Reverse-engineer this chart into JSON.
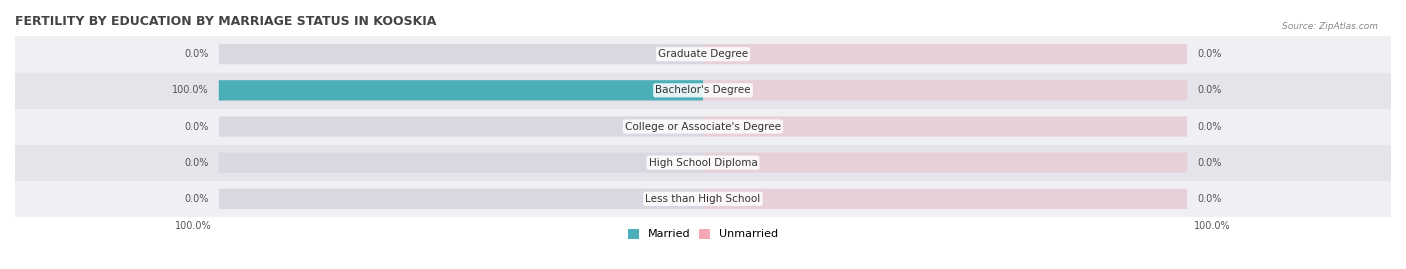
{
  "title": "FERTILITY BY EDUCATION BY MARRIAGE STATUS IN KOOSKIA",
  "source": "Source: ZipAtlas.com",
  "categories": [
    "Less than High School",
    "High School Diploma",
    "College or Associate's Degree",
    "Bachelor's Degree",
    "Graduate Degree"
  ],
  "married_values": [
    0.0,
    0.0,
    0.0,
    100.0,
    0.0
  ],
  "unmarried_values": [
    0.0,
    0.0,
    0.0,
    0.0,
    0.0
  ],
  "married_color": "#4AAFB8",
  "unmarried_color": "#F4A7B5",
  "bar_bg_color": "#E8E8EC",
  "row_bg_colors": [
    "#F0F0F4",
    "#E4E4EA"
  ],
  "max_value": 100.0,
  "title_fontsize": 9,
  "label_fontsize": 7.5,
  "tick_fontsize": 7,
  "legend_fontsize": 8,
  "background_color": "#FFFFFF"
}
